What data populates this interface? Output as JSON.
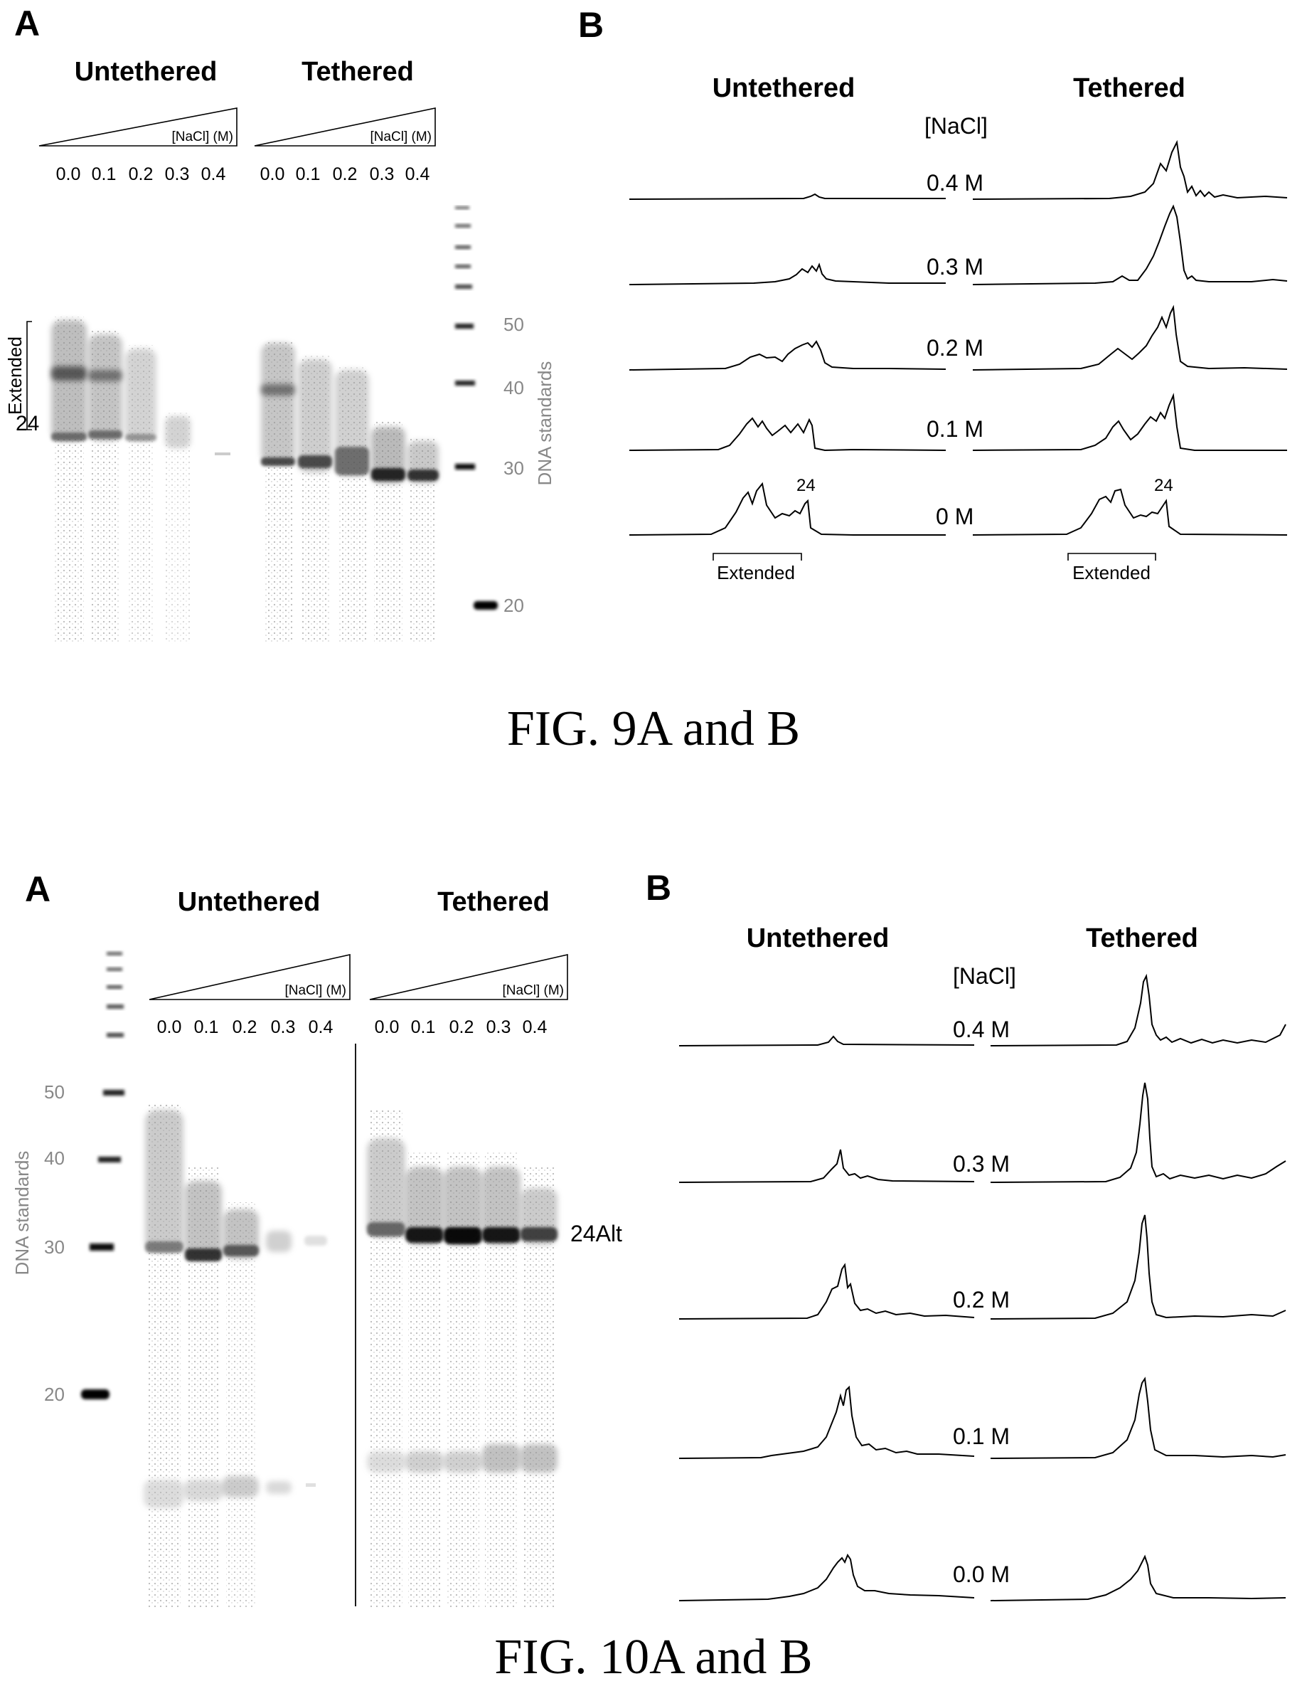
{
  "fig9": {
    "caption": "FIG. 9A and B",
    "panel_a": {
      "letter": "A",
      "untethered_label": "Untethered",
      "tethered_label": "Tethered",
      "salt_label": "[NaCl] (M)",
      "lane_labels": [
        "0.0",
        "0.1",
        "0.2",
        "0.3",
        "0.4"
      ],
      "extended_label": "Extended",
      "band_24_label": "24",
      "standards_label": "DNA standards",
      "standards": [
        "50",
        "40",
        "30",
        "20"
      ]
    },
    "panel_b": {
      "letter": "B",
      "untethered_label": "Untethered",
      "tethered_label": "Tethered",
      "salt_heading": "[NaCl]",
      "traces": [
        "0.4 M",
        "0.3 M",
        "0.2 M",
        "0.1 M",
        "0 M"
      ],
      "peak_label_left": "24",
      "peak_label_right": "24",
      "extended_left": "Extended",
      "extended_right": "Extended"
    }
  },
  "fig10": {
    "caption": "FIG. 10A and B",
    "panel_a": {
      "letter": "A",
      "untethered_label": "Untethered",
      "tethered_label": "Tethered",
      "salt_label": "[NaCl] (M)",
      "lane_labels": [
        "0.0",
        "0.1",
        "0.2",
        "0.3",
        "0.4"
      ],
      "band_label": "24Alt",
      "standards_label": "DNA standards",
      "standards": [
        "50",
        "40",
        "30",
        "20"
      ]
    },
    "panel_b": {
      "letter": "B",
      "untethered_label": "Untethered",
      "tethered_label": "Tethered",
      "salt_heading": "[NaCl]",
      "traces": [
        "0.4 M",
        "0.3 M",
        "0.2 M",
        "0.1 M",
        "0.0 M"
      ]
    }
  }
}
